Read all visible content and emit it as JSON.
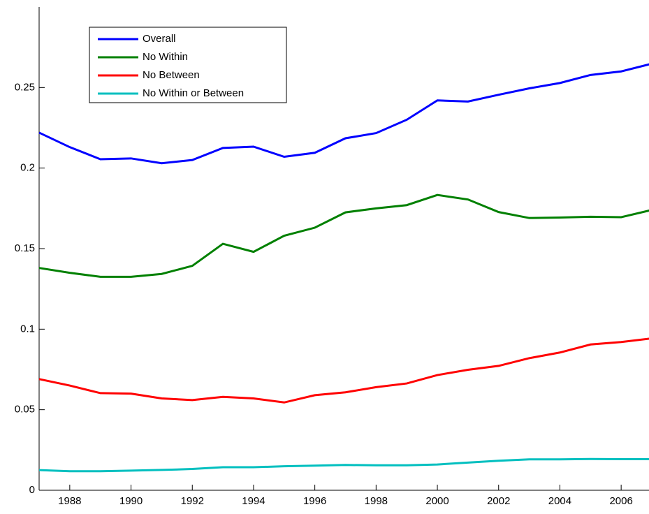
{
  "chart_data": {
    "type": "line",
    "x": [
      1987,
      1988,
      1989,
      1990,
      1991,
      1992,
      1993,
      1994,
      1995,
      1996,
      1997,
      1998,
      1999,
      2000,
      2001,
      2002,
      2003,
      2004,
      2005,
      2006,
      2007
    ],
    "series": [
      {
        "name": "Overall",
        "color": "#0000ff",
        "values": [
          0.222,
          0.213,
          0.2055,
          0.206,
          0.203,
          0.205,
          0.2125,
          0.2133,
          0.207,
          0.2095,
          0.2185,
          0.2217,
          0.23,
          0.242,
          0.2413,
          0.2455,
          0.2495,
          0.2528,
          0.2578,
          0.26,
          0.2648
        ]
      },
      {
        "name": "No Within",
        "color": "#008000",
        "values": [
          0.138,
          0.135,
          0.1325,
          0.1325,
          0.1343,
          0.1393,
          0.153,
          0.148,
          0.158,
          0.163,
          0.1725,
          0.175,
          0.177,
          0.1833,
          0.1805,
          0.1727,
          0.169,
          0.1693,
          0.1698,
          0.1695,
          0.174
        ]
      },
      {
        "name": "No Between",
        "color": "#ff0000",
        "values": [
          0.069,
          0.065,
          0.0603,
          0.06,
          0.057,
          0.056,
          0.058,
          0.057,
          0.0545,
          0.059,
          0.0608,
          0.064,
          0.0663,
          0.0715,
          0.0748,
          0.0772,
          0.082,
          0.0855,
          0.0905,
          0.092,
          0.0943
        ]
      },
      {
        "name": "No Within or Between",
        "color": "#00bfbf",
        "values": [
          0.0125,
          0.0118,
          0.0118,
          0.0122,
          0.0126,
          0.0132,
          0.0143,
          0.0143,
          0.0149,
          0.0153,
          0.0157,
          0.0155,
          0.0155,
          0.016,
          0.0172,
          0.0183,
          0.0192,
          0.0192,
          0.0194,
          0.0193,
          0.0193
        ]
      }
    ],
    "xlim": [
      1987,
      2007
    ],
    "xticks": [
      1988,
      1990,
      1992,
      1994,
      1996,
      1998,
      2000,
      2002,
      2004,
      2006
    ],
    "ylim": [
      0,
      0.3
    ],
    "yticks": [
      0,
      0.05,
      0.1,
      0.15,
      0.2,
      0.25
    ],
    "legend": "upper left"
  }
}
